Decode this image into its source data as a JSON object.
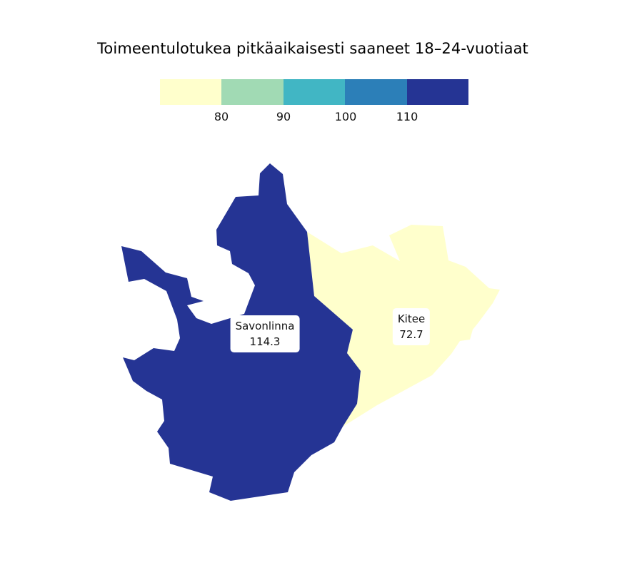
{
  "title": "Toimeentulotukea pitkäaikaisesti saaneet 18–24-vuotiaat",
  "legend": {
    "colors": [
      "#ffffcc",
      "#a1dab4",
      "#41b6c4",
      "#2c7fb8",
      "#253494"
    ],
    "ticks": [
      "80",
      "90",
      "100",
      "110"
    ]
  },
  "regions": [
    {
      "name": "Savonlinna",
      "value": "114.3",
      "color": "#253494"
    },
    {
      "name": "Kitee",
      "value": "72.7",
      "color": "#ffffcc"
    }
  ]
}
